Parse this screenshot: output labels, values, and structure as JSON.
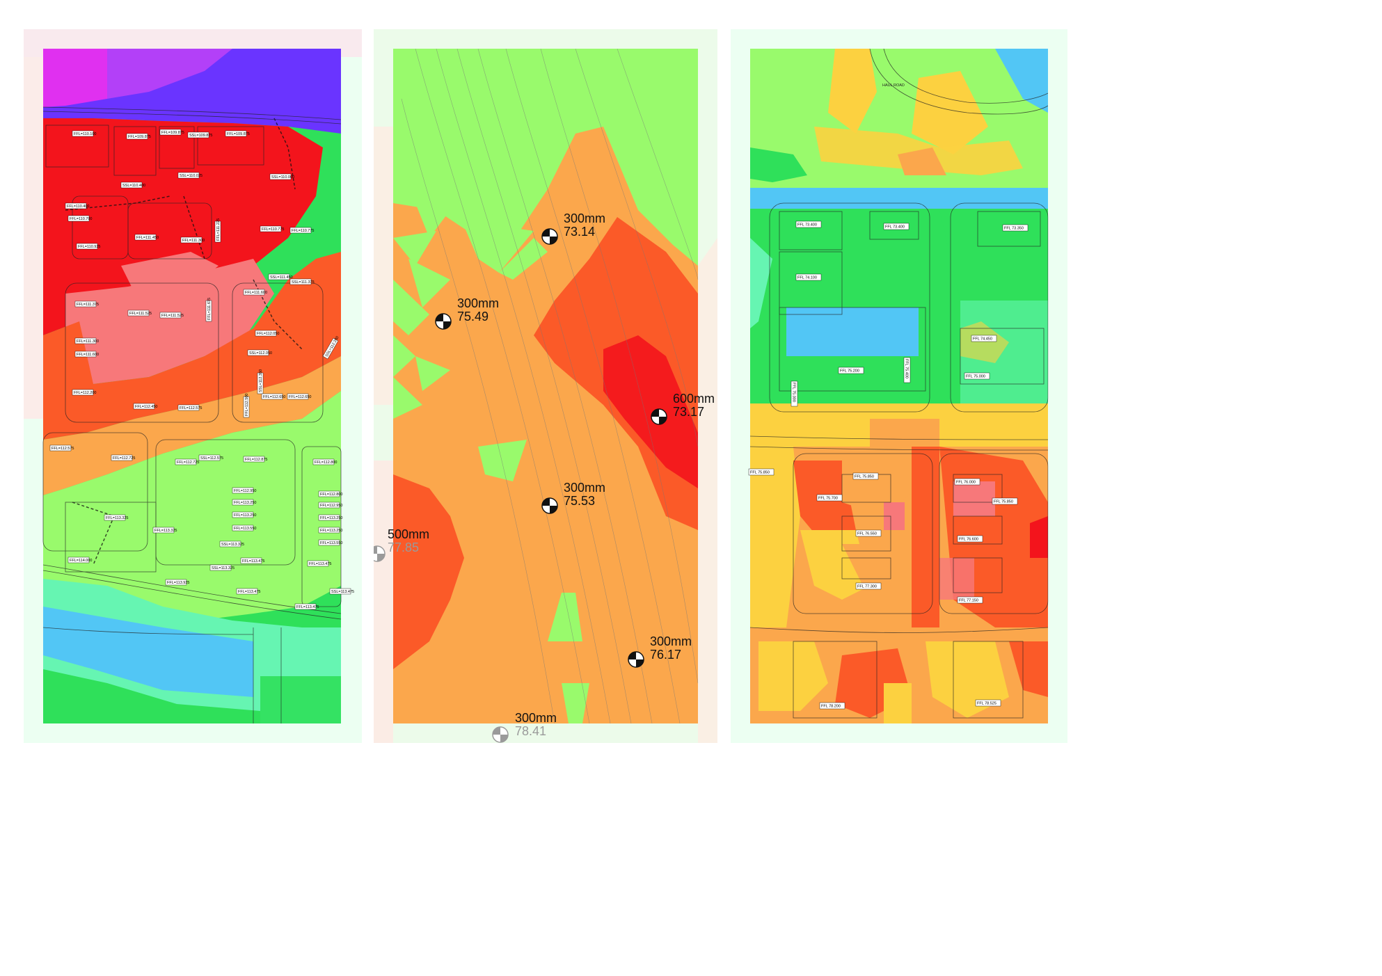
{
  "left_panel": {
    "levels": [
      "FFL=110.100",
      "FFL=109.875",
      "FFL=109.875",
      "SSL=109.875",
      "FFL=109.875",
      "SSL=110.025",
      "SSL=110.000",
      "SSL=110.400",
      "FFL=110.400",
      "FFL=110.700",
      "FFL=110.925",
      "FFL=111.450",
      "FFL=111.300",
      "FFL=111.225",
      "FFL=110.775",
      "FFL=110.775",
      "SSL=111.450",
      "SSL=111.375",
      "FFL=111.600",
      "FFL=111.375",
      "FFL=111.525",
      "FFL=111.525",
      "FFL=111.675",
      "FFL=111.300",
      "FFL=111.600",
      "FFL=112.050",
      "SSL=112.050",
      "SSL=112.200",
      "FFL=112.200",
      "FFL=112.450",
      "FFL=112.575",
      "FFL=112.500",
      "SSL=112.350",
      "FFL=112.650",
      "FFL=112.650",
      "FFL=112.575",
      "FFL=112.725",
      "FFL=112.725",
      "SSL=112.575",
      "FFL=112.875",
      "FFL=112.800",
      "FFL=112.950",
      "FFL=113.250",
      "FFL=113.250",
      "FFL=113.550",
      "FFL=112.800",
      "FFL=112.950",
      "FFL=113.250",
      "FFL=113.250",
      "FFL=113.550",
      "FFL=113.325",
      "FFL=113.325",
      "SSL=113.325",
      "FFL=113.475",
      "SSL=113.325",
      "FFL=113.475",
      "FFL=113.475",
      "FFL=113.925",
      "FFL=114.000",
      "SSL=113.475",
      "FFL=113.475"
    ]
  },
  "middle_panel": {
    "datums": [
      {
        "depth": "300mm",
        "level": "73.14"
      },
      {
        "depth": "300mm",
        "level": "75.49"
      },
      {
        "depth": "600mm",
        "level": "73.17"
      },
      {
        "depth": "300mm",
        "level": "75.53"
      },
      {
        "depth": "500mm",
        "level": "77.85"
      },
      {
        "depth": "300mm",
        "level": "76.17"
      },
      {
        "depth": "300mm",
        "level": "78.41"
      }
    ]
  },
  "right_panel": {
    "road_label": "HAUL ROAD",
    "levels": [
      "FFL 73.400",
      "FFL 73.400",
      "FFL 73.350",
      "FFL 74.100",
      "FFL 74.450",
      "FFL 75.000",
      "FFL 75.200",
      "FFL 75.000",
      "FFL 75.400",
      "FFL 75.850",
      "FFL 75.850",
      "FFL 76.000",
      "FFL 75.700",
      "FFL 75.850",
      "FFL 76.550",
      "FFL 76.600",
      "FFL 77.300",
      "FFL 77.150",
      "FFL 78.200",
      "FFL 78.525"
    ]
  },
  "colors": {
    "red": "#f3141c",
    "deep_red": "#e8141c",
    "pink": "#f7787a",
    "orange_red": "#fb5a28",
    "orange": "#fba74c",
    "yellow": "#fcd140",
    "light_green": "#99fa6c",
    "green": "#2fe05a",
    "mint": "#66f5b2",
    "blue": "#52c6f5",
    "violet": "#6a34ff",
    "magenta": "#e030f0",
    "frame_left": "#d6ffe2",
    "frame_mid": "#d5f6d0",
    "frame_right": "#d6ffe2"
  }
}
